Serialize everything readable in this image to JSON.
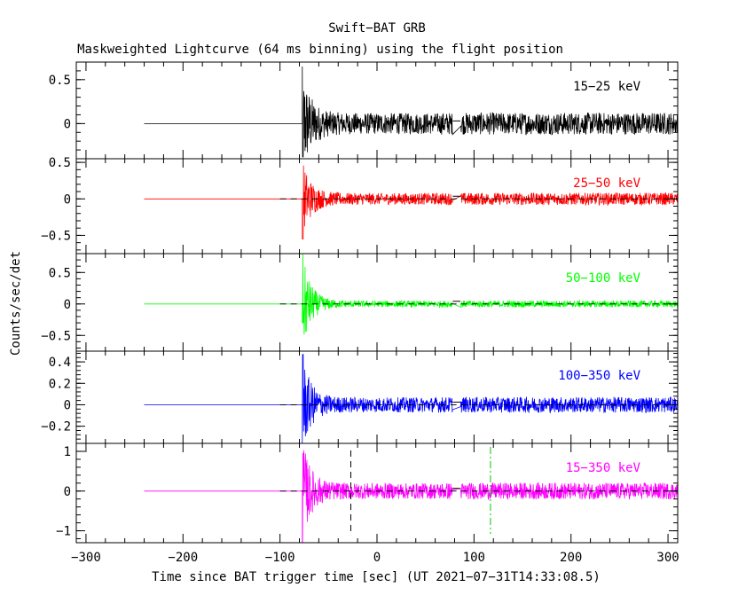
{
  "chart_data": {
    "type": "line",
    "title": "Swift−BAT GRB",
    "subtitle": "Maskweighted Lightcurve (64 ms binning) using the flight position",
    "xlabel": "Time since BAT trigger time [sec] (UT 2021−07−31T14:33:08.5)",
    "ylabel": "Counts/sec/det",
    "xlim": [
      -310,
      310
    ],
    "x_ticks": [
      -300,
      -200,
      -100,
      0,
      100,
      200,
      300
    ],
    "x_tick_labels": [
      "−300",
      "−200",
      "−100",
      "0",
      "100",
      "200",
      "300"
    ],
    "data_start": -240,
    "burst_time": -77,
    "gap": [
      78,
      86
    ],
    "data_end": 310,
    "dashed_markers": [
      -27
    ],
    "dashdot_markers": [
      117
    ],
    "panels": [
      {
        "band": "15−25 keV",
        "color": "#000000",
        "ylim": [
          -0.4,
          0.7
        ],
        "y_ticks": [
          0,
          0.5
        ],
        "y_tick_labels": [
          "0",
          "0.5"
        ],
        "peak": 0.65,
        "trough": -0.38,
        "noise": 0.12
      },
      {
        "band": "25−50 keV",
        "color": "#ff0000",
        "ylim": [
          -0.75,
          0.55
        ],
        "y_ticks": [
          -0.5,
          0,
          0.5
        ],
        "y_tick_labels": [
          "−0.5",
          "0",
          "0.5"
        ],
        "peak": 0.32,
        "trough": -0.55,
        "noise": 0.08
      },
      {
        "band": "50−100 keV",
        "color": "#00ff00",
        "ylim": [
          -0.75,
          0.8
        ],
        "y_ticks": [
          -0.5,
          0,
          0.5
        ],
        "y_tick_labels": [
          "−0.5",
          "0",
          "0.5"
        ],
        "peak": 0.8,
        "trough": -0.3,
        "noise": 0.05
      },
      {
        "band": "100−350 keV",
        "color": "#0000ff",
        "ylim": [
          -0.36,
          0.5
        ],
        "y_ticks": [
          -0.2,
          0,
          0.2,
          0.4
        ],
        "y_tick_labels": [
          "−0.2",
          "0",
          "0.2",
          "0.4"
        ],
        "peak": 0.47,
        "trough": -0.36,
        "noise": 0.07
      },
      {
        "band": "15−350 keV",
        "color": "#ff00ff",
        "ylim": [
          -1.3,
          1.2
        ],
        "y_ticks": [
          -1,
          0,
          1
        ],
        "y_tick_labels": [
          "−1",
          "0",
          "1"
        ],
        "peak": 0.95,
        "trough": -1.3,
        "noise": 0.2
      }
    ]
  }
}
